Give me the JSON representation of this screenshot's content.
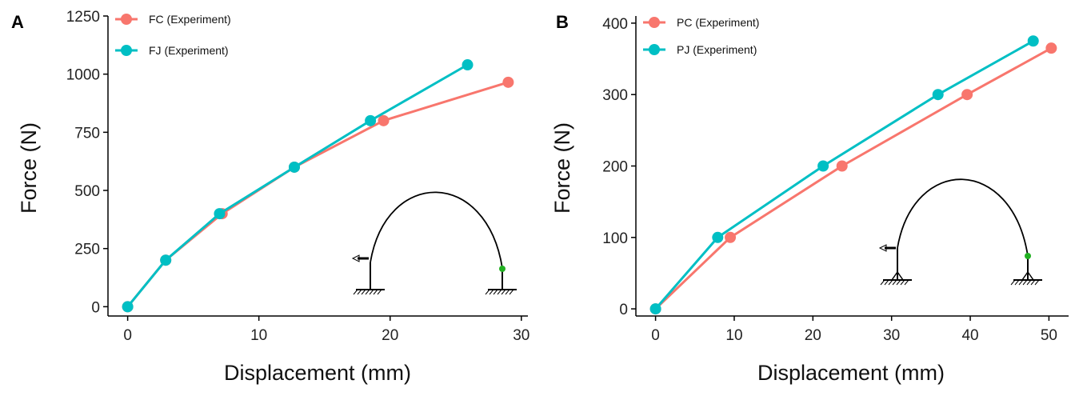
{
  "colors": {
    "red": "#F8766D",
    "teal": "#00BFC4",
    "green": "#22B022"
  },
  "chart_data": [
    {
      "panel_label": "A",
      "type": "line",
      "xlabel": "Displacement (mm)",
      "ylabel": "Force (N)",
      "xlim": [
        -1.5,
        30.5
      ],
      "ylim": [
        -40,
        1250
      ],
      "xticks": [
        0,
        10,
        20,
        30
      ],
      "yticks": [
        0,
        250,
        500,
        750,
        1000,
        1250
      ],
      "grid": false,
      "legend_position": "top-left",
      "series": [
        {
          "name": "FC (Experiment)",
          "color": "#F8766D",
          "points": [
            [
              0,
              0
            ],
            [
              2.9,
              200
            ],
            [
              7.2,
              400
            ],
            [
              12.7,
              600
            ],
            [
              19.5,
              800
            ],
            [
              29,
              965
            ]
          ]
        },
        {
          "name": "FJ (Experiment)",
          "color": "#00BFC4",
          "points": [
            [
              0,
              0
            ],
            [
              2.9,
              200
            ],
            [
              7.0,
              400
            ],
            [
              12.7,
              600
            ],
            [
              18.5,
              800
            ],
            [
              25.9,
              1040
            ]
          ]
        }
      ],
      "inset": {
        "supports": "fixed",
        "marker_color": "#22B022",
        "load_icon": "arrow-left-icon"
      }
    },
    {
      "panel_label": "B",
      "type": "line",
      "xlabel": "Displacement (mm)",
      "ylabel": "Force (N)",
      "xlim": [
        -2.5,
        52.5
      ],
      "ylim": [
        -10,
        410
      ],
      "xticks": [
        0,
        10,
        20,
        30,
        40,
        50
      ],
      "yticks": [
        0,
        100,
        200,
        300,
        400
      ],
      "grid": false,
      "legend_position": "top-left",
      "series": [
        {
          "name": "PC (Experiment)",
          "color": "#F8766D",
          "points": [
            [
              0,
              0
            ],
            [
              9.5,
              100
            ],
            [
              23.7,
              200
            ],
            [
              39.6,
              300
            ],
            [
              50.3,
              365
            ]
          ]
        },
        {
          "name": "PJ (Experiment)",
          "color": "#00BFC4",
          "points": [
            [
              0,
              0
            ],
            [
              7.9,
              100
            ],
            [
              21.3,
              200
            ],
            [
              35.9,
              300
            ],
            [
              48.0,
              375
            ]
          ]
        }
      ],
      "inset": {
        "supports": "pinned",
        "marker_color": "#22B022",
        "load_icon": "arrow-left-icon"
      }
    }
  ]
}
